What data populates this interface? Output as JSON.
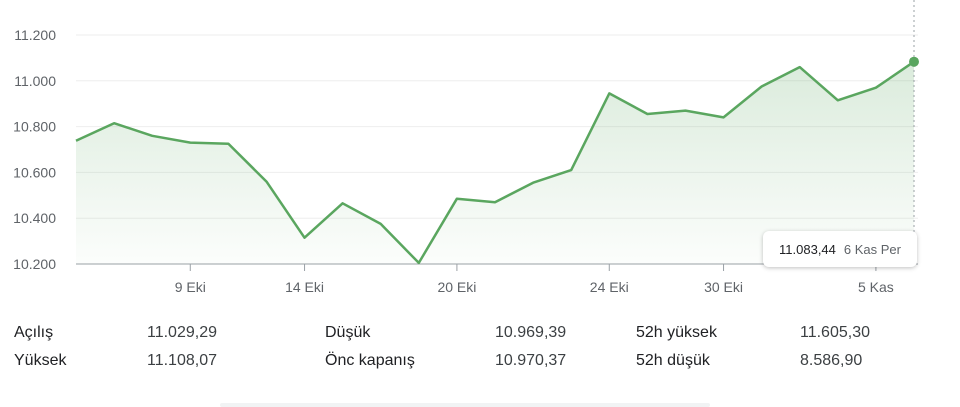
{
  "chart_data": {
    "type": "area",
    "y_ticks": [
      10200,
      10400,
      10600,
      10800,
      11000,
      11200
    ],
    "y_tick_labels": [
      "10.200",
      "10.400",
      "10.600",
      "10.800",
      "11.000",
      "11.200"
    ],
    "ylim": [
      10200,
      11200
    ],
    "x_tick_labels": [
      "9 Eki",
      "14 Eki",
      "20 Eki",
      "24 Eki",
      "30 Eki",
      "5 Kas"
    ],
    "x_tick_index": [
      3,
      6,
      10,
      14,
      17,
      21
    ],
    "series": [
      {
        "values": [
          10738,
          10815,
          10760,
          10730,
          10725,
          10560,
          10315,
          10465,
          10375,
          10205,
          10485,
          10470,
          10555,
          10610,
          10945,
          10855,
          10870,
          10840,
          10975,
          11060,
          10915,
          10970,
          11083.44
        ],
        "color": "#5aa65f"
      }
    ],
    "grid": true,
    "highlight": {
      "value": "11.083,44",
      "date": "6 Kas Per"
    }
  },
  "stats": [
    [
      {
        "label": "Açılış",
        "value": "11.029,29"
      },
      {
        "label": "Düşük",
        "value": "10.969,39"
      },
      {
        "label": "52h yüksek",
        "value": "11.605,30"
      }
    ],
    [
      {
        "label": "Yüksek",
        "value": "11.108,07"
      },
      {
        "label": "Önc kapanış",
        "value": "10.970,37"
      },
      {
        "label": "52h düşük",
        "value": "8.586,90"
      }
    ]
  ]
}
